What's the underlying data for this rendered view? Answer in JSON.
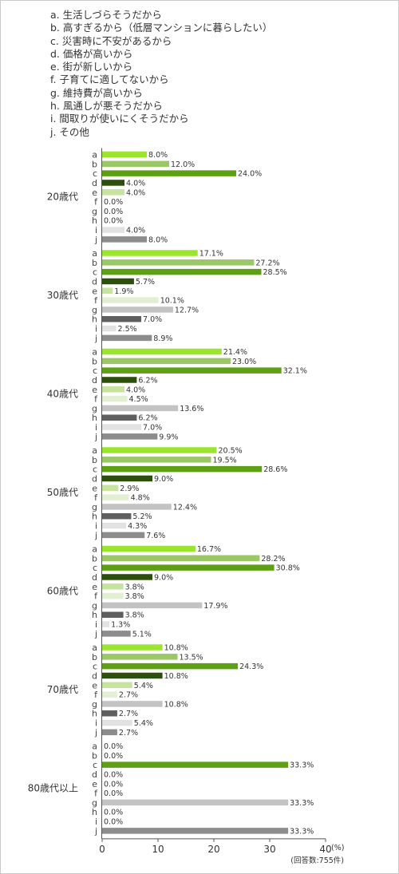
{
  "legend": [
    "a. 生活しづらそうだから",
    "b. 高すぎるから（低層マンションに暮らしたい）",
    "c. 災害時に不安があるから",
    "d. 価格が高いから",
    "e. 街が新しいから",
    "f. 子育てに適してないから",
    "g. 維持費が高いから",
    "h. 風通しが悪そうだから",
    "i. 間取りが使いにくそうだから",
    "j. その他"
  ],
  "chart_data": {
    "type": "bar",
    "orientation": "horizontal",
    "value_suffix": "%",
    "categories": [
      "20歳代",
      "30歳代",
      "40歳代",
      "50歳代",
      "60歳代",
      "70歳代",
      "80歳代以上"
    ],
    "series": [
      {
        "name": "a",
        "color": "#9be52f",
        "values": [
          8.0,
          17.1,
          21.4,
          20.5,
          16.7,
          10.8,
          0.0
        ]
      },
      {
        "name": "b",
        "color": "#9cc766",
        "values": [
          12.0,
          27.2,
          23.0,
          19.5,
          28.2,
          13.5,
          0.0
        ]
      },
      {
        "name": "c",
        "color": "#5ea014",
        "values": [
          24.0,
          28.5,
          32.1,
          28.6,
          30.8,
          24.3,
          33.3
        ]
      },
      {
        "name": "d",
        "color": "#2d4f0c",
        "values": [
          4.0,
          5.7,
          6.2,
          9.0,
          9.0,
          10.8,
          0.0
        ]
      },
      {
        "name": "e",
        "color": "#c6e49e",
        "values": [
          4.0,
          1.9,
          4.0,
          2.9,
          3.8,
          5.4,
          0.0
        ]
      },
      {
        "name": "f",
        "color": "#e2efd2",
        "values": [
          0.0,
          10.1,
          4.5,
          4.8,
          3.8,
          2.7,
          0.0
        ]
      },
      {
        "name": "g",
        "color": "#c3c3c3",
        "values": [
          0.0,
          12.7,
          13.6,
          12.4,
          17.9,
          10.8,
          33.3
        ]
      },
      {
        "name": "h",
        "color": "#5f5f5f",
        "values": [
          0.0,
          7.0,
          6.2,
          5.2,
          3.8,
          2.7,
          0.0
        ]
      },
      {
        "name": "i",
        "color": "#e2e2e2",
        "values": [
          4.0,
          2.5,
          7.0,
          4.3,
          1.3,
          5.4,
          0.0
        ]
      },
      {
        "name": "j",
        "color": "#8c8c8c",
        "values": [
          8.0,
          8.9,
          9.9,
          7.6,
          5.1,
          2.7,
          33.3
        ]
      }
    ],
    "xlim": [
      0,
      40
    ],
    "xticks": [
      "0",
      "10",
      "20",
      "30",
      "40"
    ],
    "unit_label": "(%)",
    "note": "(回答数:755件)",
    "grid": false
  }
}
